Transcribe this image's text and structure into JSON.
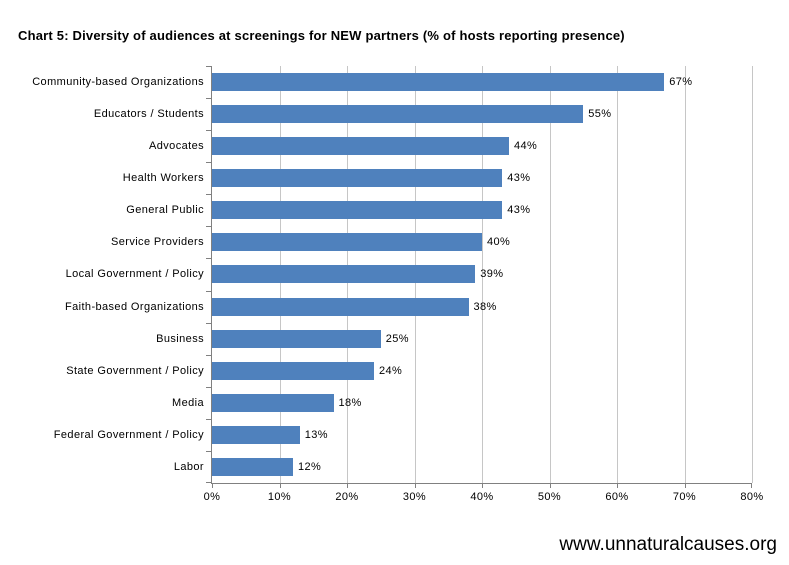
{
  "title": "Chart 5: Diversity of audiences at screenings for NEW partners (% of hosts reporting presence)",
  "footer": "www.unnaturalcauses.org",
  "chart_data": {
    "type": "bar",
    "orientation": "horizontal",
    "title": "Chart 5: Diversity of audiences at screenings for NEW partners (% of hosts reporting presence)",
    "categories": [
      "Community-based Organizations",
      "Educators / Students",
      "Advocates",
      "Health Workers",
      "General Public",
      "Service Providers",
      "Local Government / Policy",
      "Faith-based Organizations",
      "Business",
      "State Government / Policy",
      "Media",
      "Federal Government / Policy",
      "Labor"
    ],
    "values": [
      67,
      55,
      44,
      43,
      43,
      40,
      39,
      38,
      25,
      24,
      18,
      13,
      12
    ],
    "data_labels": [
      "67%",
      "55%",
      "44%",
      "43%",
      "43%",
      "40%",
      "39%",
      "38%",
      "25%",
      "24%",
      "18%",
      "13%",
      "12%"
    ],
    "xlabel": "",
    "ylabel": "",
    "xlim": [
      0,
      80
    ],
    "x_ticks": [
      "0%",
      "10%",
      "20%",
      "30%",
      "40%",
      "50%",
      "60%",
      "70%",
      "80%"
    ],
    "grid": "vertical",
    "legend": "none",
    "colors": {
      "bar": "#4F81BD",
      "gridline": "#C6C6C6",
      "axis": "#808080"
    }
  }
}
